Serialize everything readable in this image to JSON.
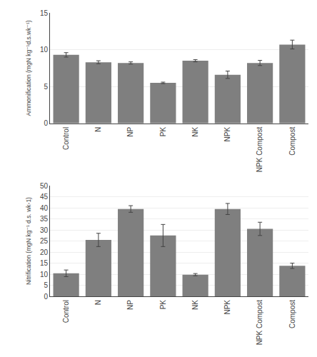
{
  "chart_data": [
    {
      "type": "bar",
      "categories": [
        "Control",
        "N",
        "NP",
        "PK",
        "NK",
        "NPK",
        "NPK Compost",
        "Compost"
      ],
      "values": [
        9.3,
        8.3,
        8.2,
        5.5,
        8.5,
        6.6,
        8.2,
        10.7
      ],
      "errors": [
        0.3,
        0.2,
        0.15,
        0.1,
        0.15,
        0.5,
        0.35,
        0.6
      ],
      "ylabel": "Ammonification (mgN kg⁻¹d.s.wk⁻¹)",
      "ylim": [
        0,
        15
      ],
      "yticks": [
        0,
        5,
        10,
        15
      ],
      "color": "#7f7f7f",
      "grid": true
    },
    {
      "type": "bar",
      "categories": [
        "Control",
        "N",
        "NP",
        "PK",
        "NK",
        "NPK",
        "NPK Compost",
        "Compost"
      ],
      "values": [
        10.4,
        25.5,
        39.5,
        27.5,
        9.8,
        39.5,
        30.5,
        13.8
      ],
      "errors": [
        1.5,
        3.0,
        1.5,
        5.0,
        0.5,
        2.5,
        3.0,
        1.2
      ],
      "ylabel": "Nitrification (mgN kg⁻¹ d.s. wk-1)",
      "ylim": [
        0,
        50
      ],
      "yticks": [
        0,
        5,
        10,
        15,
        20,
        25,
        30,
        35,
        40,
        45,
        50
      ],
      "color": "#7f7f7f",
      "grid": true
    }
  ]
}
